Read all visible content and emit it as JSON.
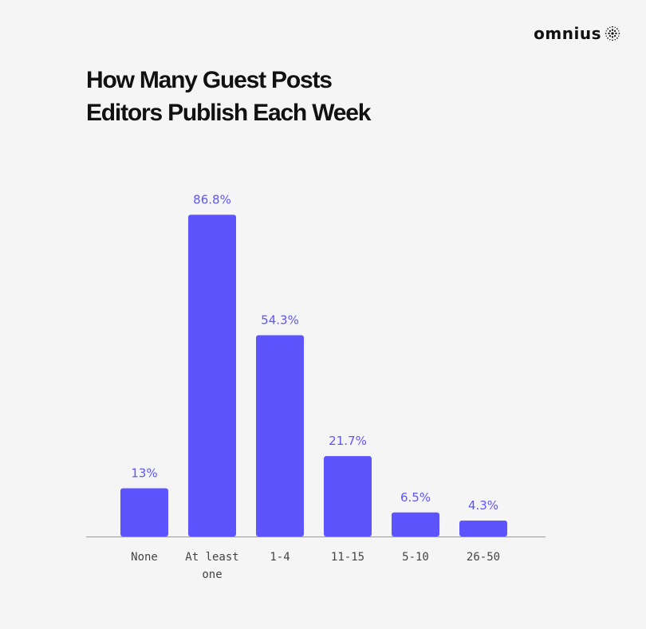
{
  "brand": {
    "name": "omnius",
    "icon": "dotted-sphere-icon"
  },
  "colors": {
    "bar": "#5e54fe",
    "label": "#5e54fe",
    "axis": "#9a9a9a",
    "tick_text": "#444444",
    "background": "#f5f5f5"
  },
  "chart_data": {
    "type": "bar",
    "title_lines": [
      "How Many Guest Posts",
      "Editors Publish Each Week"
    ],
    "categories": [
      [
        "None"
      ],
      [
        "At least",
        "one"
      ],
      [
        "1-4"
      ],
      [
        "11-15"
      ],
      [
        "5-10"
      ],
      [
        "26-50"
      ]
    ],
    "values": [
      13,
      86.8,
      54.3,
      21.7,
      6.5,
      4.3
    ],
    "value_labels": [
      "13%",
      "86.8%",
      "54.3%",
      "21.7%",
      "6.5%",
      "4.3%"
    ],
    "xlabel": "",
    "ylabel": "",
    "ylim": [
      0,
      100
    ],
    "grid": false,
    "legend": "none"
  }
}
